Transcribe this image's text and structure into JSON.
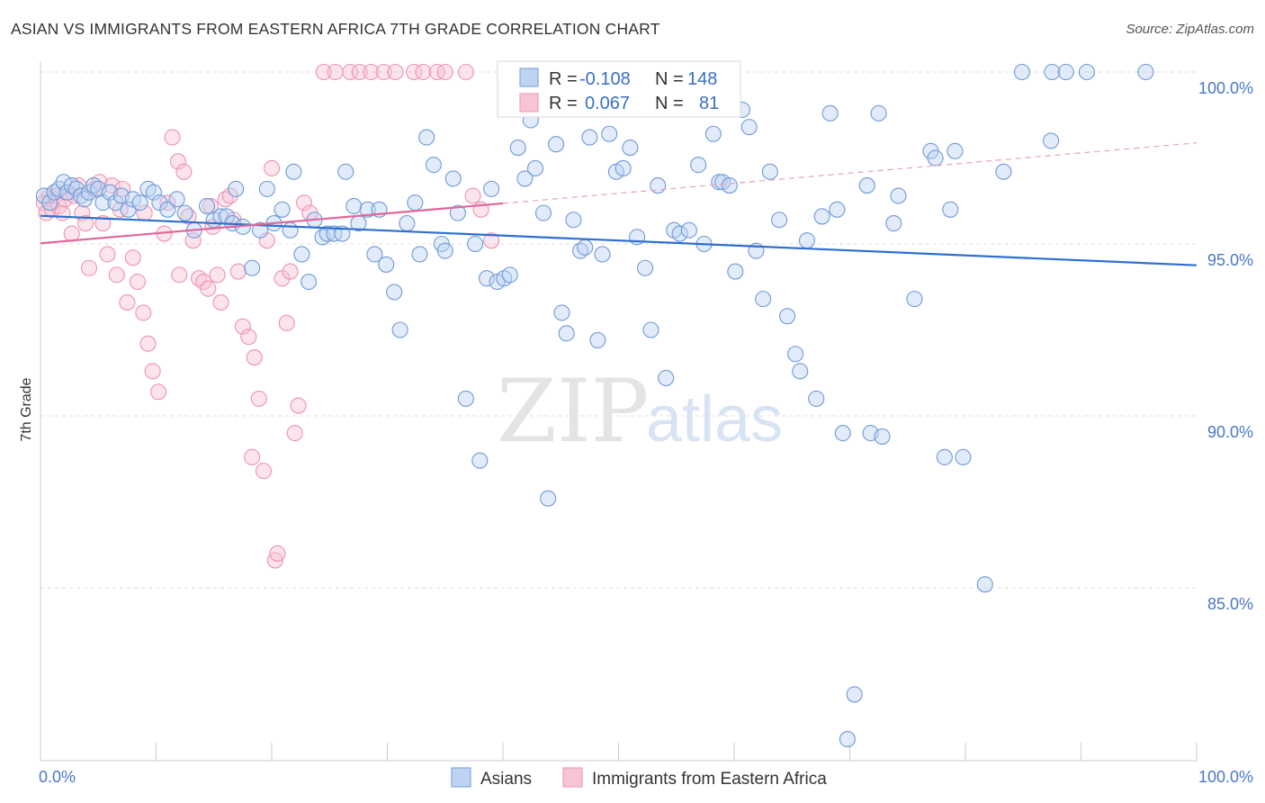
{
  "header": {
    "title": "ASIAN VS IMMIGRANTS FROM EASTERN AFRICA 7TH GRADE CORRELATION CHART",
    "source": "Source: ZipAtlas.com"
  },
  "watermark": {
    "zip": "ZIP",
    "atlas": "atlas"
  },
  "chart_data": {
    "type": "scatter",
    "title": "ASIAN VS IMMIGRANTS FROM EASTERN AFRICA 7TH GRADE CORRELATION CHART",
    "xlabel": "",
    "ylabel": "7th Grade",
    "xlim": [
      0,
      100
    ],
    "ylim": [
      80.5,
      100.9
    ],
    "y_ticks": [
      {
        "value": 100,
        "label": "100.0%"
      },
      {
        "value": 95,
        "label": "95.0%"
      },
      {
        "value": 90,
        "label": "90.0%"
      },
      {
        "value": 85,
        "label": "85.0%"
      }
    ],
    "x_tick_labels": {
      "left": "0.0%",
      "right": "100.0%"
    },
    "grid": true,
    "legend_position": "top-center",
    "stats": [
      {
        "r_label": "R =",
        "r_value": "-0.108",
        "n_label": "N =",
        "n_value": "148"
      },
      {
        "r_label": "R =",
        "r_value": "0.067",
        "n_label": "N =",
        "n_value": "81"
      }
    ],
    "series": [
      {
        "name": "Asians",
        "color": "#7fa8e0",
        "trend": {
          "x0": 0,
          "y0": 95.82,
          "x1": 100,
          "y1": 94.38
        },
        "points": [
          [
            0.3,
            96.4
          ],
          [
            0.8,
            96.2
          ],
          [
            1.2,
            96.5
          ],
          [
            1.6,
            96.6
          ],
          [
            2.0,
            96.8
          ],
          [
            2.3,
            96.5
          ],
          [
            2.7,
            96.7
          ],
          [
            3.1,
            96.6
          ],
          [
            3.5,
            96.4
          ],
          [
            3.8,
            96.3
          ],
          [
            4.2,
            96.5
          ],
          [
            4.6,
            96.7
          ],
          [
            5.0,
            96.6
          ],
          [
            5.4,
            96.2
          ],
          [
            6.0,
            96.5
          ],
          [
            6.5,
            96.2
          ],
          [
            7.0,
            96.4
          ],
          [
            7.6,
            96.0
          ],
          [
            8.0,
            96.3
          ],
          [
            8.6,
            96.2
          ],
          [
            9.3,
            96.6
          ],
          [
            9.8,
            96.5
          ],
          [
            10.3,
            96.2
          ],
          [
            11.0,
            96.0
          ],
          [
            11.8,
            96.3
          ],
          [
            12.5,
            95.9
          ],
          [
            13.3,
            95.4
          ],
          [
            14.4,
            96.1
          ],
          [
            15.0,
            95.7
          ],
          [
            15.6,
            95.8
          ],
          [
            16.1,
            95.8
          ],
          [
            16.6,
            95.6
          ],
          [
            16.9,
            96.6
          ],
          [
            17.5,
            95.5
          ],
          [
            18.3,
            94.3
          ],
          [
            19.0,
            95.4
          ],
          [
            19.6,
            96.6
          ],
          [
            20.2,
            95.6
          ],
          [
            20.9,
            96.0
          ],
          [
            21.6,
            95.4
          ],
          [
            21.9,
            97.1
          ],
          [
            22.6,
            94.7
          ],
          [
            23.2,
            93.9
          ],
          [
            23.7,
            95.7
          ],
          [
            24.4,
            95.2
          ],
          [
            24.8,
            95.3
          ],
          [
            25.4,
            95.3
          ],
          [
            26.1,
            95.3
          ],
          [
            26.4,
            97.1
          ],
          [
            27.1,
            96.1
          ],
          [
            27.5,
            95.6
          ],
          [
            28.3,
            96.0
          ],
          [
            28.9,
            94.7
          ],
          [
            29.3,
            96.0
          ],
          [
            29.9,
            94.4
          ],
          [
            30.6,
            93.6
          ],
          [
            31.1,
            92.5
          ],
          [
            31.7,
            95.6
          ],
          [
            32.4,
            96.2
          ],
          [
            32.8,
            94.7
          ],
          [
            33.4,
            98.1
          ],
          [
            34.0,
            97.3
          ],
          [
            34.7,
            95.0
          ],
          [
            35.0,
            94.8
          ],
          [
            35.7,
            96.9
          ],
          [
            36.1,
            95.9
          ],
          [
            36.8,
            90.5
          ],
          [
            37.6,
            95.0
          ],
          [
            38.0,
            88.7
          ],
          [
            38.6,
            94.0
          ],
          [
            39.0,
            96.6
          ],
          [
            39.5,
            93.9
          ],
          [
            40.1,
            94.0
          ],
          [
            40.6,
            94.1
          ],
          [
            41.3,
            97.8
          ],
          [
            41.9,
            96.9
          ],
          [
            42.4,
            98.6
          ],
          [
            42.8,
            97.2
          ],
          [
            43.5,
            95.9
          ],
          [
            43.9,
            87.6
          ],
          [
            44.6,
            97.9
          ],
          [
            45.1,
            93.0
          ],
          [
            45.5,
            92.4
          ],
          [
            46.1,
            95.7
          ],
          [
            46.7,
            94.8
          ],
          [
            47.1,
            94.9
          ],
          [
            47.5,
            98.1
          ],
          [
            48.2,
            92.2
          ],
          [
            48.6,
            94.7
          ],
          [
            49.2,
            98.2
          ],
          [
            49.8,
            97.1
          ],
          [
            50.4,
            97.2
          ],
          [
            51.0,
            97.8
          ],
          [
            51.6,
            95.2
          ],
          [
            52.3,
            94.3
          ],
          [
            52.8,
            92.5
          ],
          [
            53.4,
            96.7
          ],
          [
            54.1,
            91.1
          ],
          [
            54.8,
            95.4
          ],
          [
            55.3,
            95.3
          ],
          [
            56.1,
            95.4
          ],
          [
            56.9,
            97.3
          ],
          [
            57.4,
            95.0
          ],
          [
            58.2,
            98.2
          ],
          [
            58.7,
            96.8
          ],
          [
            59.0,
            96.8
          ],
          [
            59.6,
            96.7
          ],
          [
            60.1,
            94.2
          ],
          [
            60.7,
            98.9
          ],
          [
            61.3,
            98.4
          ],
          [
            61.9,
            94.8
          ],
          [
            62.5,
            93.4
          ],
          [
            63.1,
            97.1
          ],
          [
            63.9,
            95.7
          ],
          [
            64.6,
            92.9
          ],
          [
            65.3,
            91.8
          ],
          [
            65.7,
            91.3
          ],
          [
            66.3,
            95.1
          ],
          [
            67.1,
            90.5
          ],
          [
            67.6,
            95.8
          ],
          [
            68.3,
            98.8
          ],
          [
            68.9,
            96.0
          ],
          [
            69.4,
            89.5
          ],
          [
            69.8,
            80.6
          ],
          [
            70.4,
            81.9
          ],
          [
            71.5,
            96.7
          ],
          [
            71.8,
            89.5
          ],
          [
            72.5,
            98.8
          ],
          [
            72.8,
            89.4
          ],
          [
            73.8,
            95.6
          ],
          [
            74.2,
            96.4
          ],
          [
            75.6,
            93.4
          ],
          [
            77.0,
            97.7
          ],
          [
            77.4,
            97.5
          ],
          [
            78.2,
            88.8
          ],
          [
            78.7,
            96.0
          ],
          [
            79.1,
            97.7
          ],
          [
            79.8,
            88.8
          ],
          [
            81.7,
            85.1
          ],
          [
            83.3,
            97.1
          ],
          [
            84.9,
            100.0
          ],
          [
            87.4,
            98.0
          ],
          [
            87.5,
            100.0
          ],
          [
            88.7,
            100.0
          ],
          [
            90.5,
            100.0
          ],
          [
            95.6,
            100.0
          ]
        ]
      },
      {
        "name": "Immigrants from Eastern Africa",
        "color": "#f0a0b8",
        "trend": {
          "x0": 0,
          "y0": 95.02,
          "x1": 40,
          "y1": 96.18,
          "dash_x1": 100,
          "dash_y1": 97.94
        },
        "points": [
          [
            0.3,
            96.2
          ],
          [
            0.5,
            95.9
          ],
          [
            0.8,
            96.4
          ],
          [
            1.0,
            96.0
          ],
          [
            1.3,
            96.4
          ],
          [
            1.6,
            96.1
          ],
          [
            1.9,
            95.9
          ],
          [
            2.1,
            96.3
          ],
          [
            2.4,
            96.5
          ],
          [
            2.7,
            95.3
          ],
          [
            2.9,
            96.4
          ],
          [
            3.3,
            96.7
          ],
          [
            3.6,
            95.9
          ],
          [
            3.9,
            95.6
          ],
          [
            4.2,
            94.3
          ],
          [
            4.7,
            96.6
          ],
          [
            5.1,
            96.8
          ],
          [
            5.4,
            95.6
          ],
          [
            5.8,
            94.7
          ],
          [
            6.2,
            96.7
          ],
          [
            6.6,
            94.1
          ],
          [
            7.1,
            96.6
          ],
          [
            7.5,
            93.3
          ],
          [
            8.0,
            94.6
          ],
          [
            8.4,
            93.9
          ],
          [
            8.9,
            93.0
          ],
          [
            9.3,
            92.1
          ],
          [
            9.7,
            91.3
          ],
          [
            10.2,
            90.7
          ],
          [
            10.7,
            95.3
          ],
          [
            11.0,
            96.2
          ],
          [
            11.4,
            98.1
          ],
          [
            11.9,
            97.4
          ],
          [
            12.4,
            97.1
          ],
          [
            12.8,
            95.8
          ],
          [
            13.2,
            95.1
          ],
          [
            13.7,
            94.0
          ],
          [
            14.1,
            93.9
          ],
          [
            14.5,
            93.7
          ],
          [
            14.9,
            95.5
          ],
          [
            15.3,
            94.1
          ],
          [
            15.6,
            93.3
          ],
          [
            16.0,
            96.3
          ],
          [
            16.4,
            96.4
          ],
          [
            16.7,
            95.7
          ],
          [
            17.1,
            94.2
          ],
          [
            17.5,
            92.6
          ],
          [
            18.0,
            92.3
          ],
          [
            18.3,
            88.8
          ],
          [
            18.5,
            91.7
          ],
          [
            18.9,
            90.5
          ],
          [
            19.3,
            88.4
          ],
          [
            19.6,
            95.1
          ],
          [
            20.0,
            97.2
          ],
          [
            20.3,
            85.8
          ],
          [
            20.5,
            86.0
          ],
          [
            20.9,
            94.0
          ],
          [
            21.3,
            92.7
          ],
          [
            21.6,
            94.2
          ],
          [
            22.0,
            89.5
          ],
          [
            22.3,
            90.3
          ],
          [
            22.8,
            96.2
          ],
          [
            23.3,
            95.9
          ],
          [
            24.5,
            100.0
          ],
          [
            25.5,
            100.0
          ],
          [
            26.8,
            100.0
          ],
          [
            27.6,
            100.0
          ],
          [
            28.6,
            100.0
          ],
          [
            29.7,
            100.0
          ],
          [
            30.7,
            100.0
          ],
          [
            32.3,
            100.0
          ],
          [
            33.1,
            100.0
          ],
          [
            34.3,
            100.0
          ],
          [
            35.0,
            100.0
          ],
          [
            36.8,
            100.0
          ],
          [
            37.4,
            96.4
          ],
          [
            38.1,
            96.0
          ],
          [
            39.0,
            95.1
          ],
          [
            9.0,
            95.9
          ],
          [
            6.9,
            96.0
          ],
          [
            12.0,
            94.1
          ],
          [
            14.7,
            96.1
          ]
        ]
      }
    ]
  },
  "bottom_legend": [
    {
      "label": "Asians",
      "color": "#7fa8e0"
    },
    {
      "label": "Immigrants from Eastern Africa",
      "color": "#f0a0b8"
    }
  ]
}
